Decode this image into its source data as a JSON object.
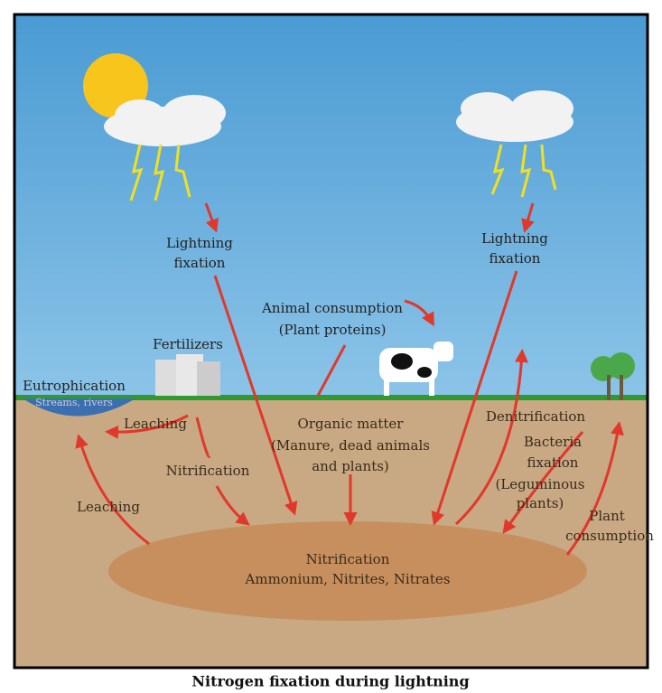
{
  "labels": {
    "lightning_left": [
      "Lightning",
      "fixation"
    ],
    "lightning_right": [
      "Lightning",
      "fixation"
    ],
    "animal": [
      "Animal consumption",
      "(Plant proteins)"
    ],
    "fertilizers": "Fertilizers",
    "eutrophication": [
      "Eutrophication",
      "Streams, rivers"
    ],
    "leaching_top": "Leaching",
    "organic": [
      "Organic matter",
      "(Manure, dead animals",
      "and plants)"
    ],
    "nitrification_arrow": "Nitrification",
    "leaching_left": "Leaching",
    "denitrification": "Denitrification",
    "bacteria": [
      "Bacteria",
      "fixation",
      "(Leguminous",
      "plants)"
    ],
    "plant": [
      "Plant",
      "consumption"
    ],
    "pool": [
      "Nitrification",
      "Ammonium, Nitrites, Nitrates"
    ]
  },
  "caption": "Nitrogen fixation during lightning"
}
